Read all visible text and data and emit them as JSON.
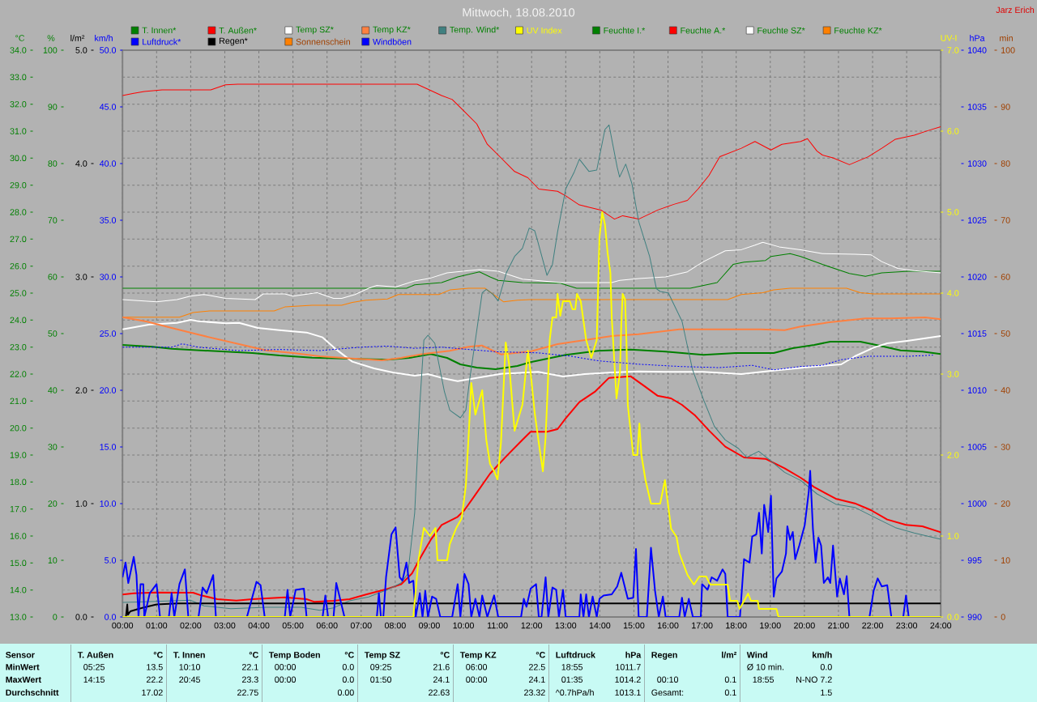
{
  "chart_data": [
    {
      "type": "line",
      "title": "Mittwoch, 18.08.2010",
      "annotations": [
        "Jarz Erich",
        "Sensor",
        "MinWert",
        "MaxWert",
        "Durchschnitt",
        "T. Außen",
        "°C",
        "05:25",
        "13.5",
        "14:15",
        "22.2",
        "17.02",
        "T. Innen",
        "°C",
        "10:10",
        "22.1",
        "20:45",
        "23.3",
        "22.75",
        "Temp Boden",
        "°C",
        "00:00",
        "0.0",
        "00:00",
        "0.0",
        "0.00",
        "Temp SZ",
        "°C",
        "09:25",
        "21.6",
        "01:50",
        "24.1",
        "22.63",
        "Temp KZ",
        "°C",
        "06:00",
        "22.5",
        "00:00",
        "24.1",
        "23.32",
        "Luftdruck",
        "hPa",
        "18:55",
        "1011.7",
        "01:35",
        "1014.2",
        "^0.7hPa/h",
        "1013.1",
        "Regen",
        "l/m²",
        "00:10",
        "0.1",
        "Gesamt:",
        "0.1",
        "Wind",
        "km/h",
        "Ø 10 min.",
        "0.0",
        "18:55",
        "N-NO 7.2",
        "1.5"
      ],
      "xlim": [
        0,
        24
      ],
      "xticks": [
        {
          "value": 0,
          "label": "00:00"
        },
        {
          "value": 1,
          "label": "01:00"
        },
        {
          "value": 2,
          "label": "02:00"
        },
        {
          "value": 3,
          "label": "03:00"
        },
        {
          "value": 4,
          "label": "04:00"
        },
        {
          "value": 5,
          "label": "05:00"
        },
        {
          "value": 6,
          "label": "06:00"
        },
        {
          "value": 7,
          "label": "07:00"
        },
        {
          "value": 8,
          "label": "08:00"
        },
        {
          "value": 9,
          "label": "09:00"
        },
        {
          "value": 10,
          "label": "10:00"
        },
        {
          "value": 11,
          "label": "11:00"
        },
        {
          "value": 12,
          "label": "12:00"
        },
        {
          "value": 13,
          "label": "13:00"
        },
        {
          "value": 14,
          "label": "14:00"
        },
        {
          "value": 15,
          "label": "15:00"
        },
        {
          "value": 16,
          "label": "16:00"
        },
        {
          "value": 17,
          "label": "17:00"
        },
        {
          "value": 18,
          "label": "18:00"
        },
        {
          "value": 19,
          "label": "19:00"
        },
        {
          "value": 20,
          "label": "20:00"
        },
        {
          "value": 21,
          "label": "21:00"
        },
        {
          "value": 22,
          "label": "22:00"
        },
        {
          "value": 23,
          "label": "23:00"
        },
        {
          "value": 24,
          "label": "24:00"
        }
      ],
      "ylabel": "°C",
      "ylim": [
        13,
        34
      ],
      "yticks": [
        {
          "value": 13,
          "label": "13.0"
        },
        {
          "value": 14,
          "label": "14.0"
        },
        {
          "value": 15,
          "label": "15.0"
        },
        {
          "value": 16,
          "label": "16.0"
        },
        {
          "value": 17,
          "label": "17.0"
        },
        {
          "value": 18,
          "label": "18.0"
        },
        {
          "value": 19,
          "label": "19.0"
        },
        {
          "value": 20,
          "label": "20.0"
        },
        {
          "value": 21,
          "label": "21.0"
        },
        {
          "value": 22,
          "label": "22.0"
        },
        {
          "value": 23,
          "label": "23.0"
        },
        {
          "value": 24,
          "label": "24.0"
        },
        {
          "value": 25,
          "label": "25.0"
        },
        {
          "value": 26,
          "label": "26.0"
        },
        {
          "value": 27,
          "label": "27.0"
        },
        {
          "value": 28,
          "label": "28.0"
        },
        {
          "value": 29,
          "label": "29.0"
        },
        {
          "value": 30,
          "label": "30.0"
        },
        {
          "value": 31,
          "label": "31.0"
        },
        {
          "value": 32,
          "label": "32.0"
        },
        {
          "value": 33,
          "label": "33.0"
        },
        {
          "value": 34,
          "label": "34.0"
        }
      ],
      "y2label": "%",
      "y2lim": [
        0,
        100
      ],
      "y2ticks": [
        0,
        10,
        20,
        30,
        40,
        50,
        60,
        70,
        80,
        90,
        100
      ],
      "y3label": "l/m²",
      "y3lim": [
        0,
        5
      ],
      "y3ticks": [
        {
          "value": 0,
          "label": "0.0"
        },
        {
          "value": 1,
          "label": "1.0"
        },
        {
          "value": 2,
          "label": "2.0"
        },
        {
          "value": 3,
          "label": "3.0"
        },
        {
          "value": 4,
          "label": "4.0"
        },
        {
          "value": 5,
          "label": "5.0"
        }
      ],
      "grid": true,
      "legend": "top",
      "series": [
        {
          "name": "T. Innen*",
          "color": "#008000",
          "x": [
            0,
            0.88,
            1.44,
            2.07,
            3.02,
            3.81,
            4.61,
            5.56,
            6.43,
            7.77,
            8.41,
            9.04,
            9.52,
            9.91,
            10.39,
            10.94,
            11.58,
            11.97,
            13.0,
            13.95,
            14.9,
            15.93,
            17.04,
            17.99,
            19.1,
            19.66,
            20.29,
            20.76,
            21.64,
            22.19,
            22.82,
            23.46,
            24.0
          ],
          "values": [
            23.08,
            23.01,
            22.94,
            22.89,
            22.83,
            22.78,
            22.69,
            22.61,
            22.58,
            22.53,
            22.6,
            22.74,
            22.6,
            22.36,
            22.24,
            22.18,
            22.3,
            22.44,
            22.71,
            22.86,
            22.91,
            22.83,
            22.71,
            22.78,
            22.78,
            22.96,
            23.08,
            23.2,
            23.2,
            23.06,
            22.88,
            22.83,
            22.74
          ]
        },
        {
          "name": "T. Außen*",
          "color": "#FF0000",
          "x": [
            0,
            0.33,
            0.96,
            2.07,
            2.31,
            2.78,
            3.34,
            3.81,
            4.76,
            5.4,
            5.63,
            6.19,
            6.66,
            7.14,
            7.69,
            8.17,
            8.49,
            8.72,
            9.04,
            9.36,
            9.83,
            10.03,
            10.31,
            10.78,
            11.26,
            11.73,
            11.97,
            12.45,
            12.76,
            13.0,
            13.4,
            13.87,
            14.27,
            14.9,
            15.3,
            15.69,
            16.09,
            16.41,
            16.8,
            17.2,
            17.68,
            18.23,
            18.86,
            19.42,
            19.89,
            20.29,
            20.92,
            21.48,
            21.95,
            22.43,
            22.98,
            23.46,
            24.0
          ],
          "values": [
            13.83,
            13.88,
            13.91,
            13.9,
            13.8,
            13.66,
            13.61,
            13.66,
            13.73,
            13.66,
            13.56,
            13.6,
            13.66,
            13.83,
            14.01,
            14.21,
            14.61,
            15.16,
            15.86,
            16.41,
            16.71,
            16.96,
            17.46,
            18.31,
            18.96,
            19.56,
            19.86,
            19.86,
            19.96,
            20.36,
            20.96,
            21.36,
            21.86,
            21.92,
            21.56,
            21.2,
            21.1,
            20.86,
            20.46,
            19.91,
            19.31,
            18.91,
            18.86,
            18.51,
            18.16,
            17.81,
            17.38,
            17.21,
            16.96,
            16.61,
            16.41,
            16.36,
            16.14
          ]
        },
        {
          "name": "Temp SZ*",
          "color": "#FFFFFF",
          "x": [
            0,
            0.8,
            1.6,
            2.0,
            2.23,
            3.02,
            3.42,
            3.97,
            4.6,
            5.4,
            5.87,
            6.27,
            6.74,
            7.38,
            7.93,
            8.57,
            8.96,
            9.36,
            9.83,
            10.39,
            11.1,
            12.19,
            12.92,
            13.56,
            14.35,
            15.14,
            15.93,
            17.04,
            18.15,
            18.86,
            19.5,
            20.29,
            21.08,
            21.48,
            22.03,
            22.43,
            23.06,
            24.0
          ],
          "values": [
            23.66,
            23.84,
            23.9,
            24.01,
            23.96,
            23.88,
            23.9,
            23.71,
            23.63,
            23.54,
            23.36,
            22.91,
            22.46,
            22.21,
            22.06,
            21.94,
            22.0,
            21.86,
            21.74,
            21.86,
            22.01,
            22.08,
            21.91,
            22.0,
            22.06,
            22.1,
            22.08,
            22.08,
            22.0,
            22.1,
            22.18,
            22.28,
            22.36,
            22.66,
            22.98,
            23.14,
            23.24,
            23.41
          ]
        },
        {
          "name": "Temp KZ*",
          "color": "#FF8040",
          "x": [
            0,
            0.72,
            1.44,
            2.23,
            3.42,
            4.21,
            5.0,
            5.79,
            6.74,
            7.61,
            8.17,
            8.8,
            9.6,
            10.15,
            10.54,
            11.1,
            11.97,
            12.76,
            13.56,
            14.35,
            15.14,
            16.33,
            17.52,
            18.7,
            19.42,
            19.89,
            20.69,
            21.79,
            22.51,
            23.54,
            24.0
          ],
          "values": [
            24.11,
            23.94,
            23.71,
            23.46,
            23.11,
            22.88,
            22.78,
            22.66,
            22.58,
            22.51,
            22.6,
            22.74,
            22.86,
            23.01,
            23.06,
            22.73,
            22.84,
            23.11,
            23.26,
            23.41,
            23.48,
            23.66,
            23.66,
            23.66,
            23.63,
            23.76,
            23.91,
            24.06,
            24.06,
            24.1,
            24.03
          ]
        },
        {
          "name": "Temp. Wind*",
          "color": "#408080",
          "x": [
            0,
            0.64,
            1.99,
            2.39,
            3.18,
            4.21,
            5.24,
            5.79,
            6.19,
            6.66,
            7.22,
            7.77,
            8.17,
            8.37,
            8.57,
            8.72,
            8.84,
            8.96,
            9.16,
            9.44,
            9.6,
            9.91,
            10.07,
            10.19,
            10.35,
            10.55,
            10.67,
            10.86,
            11.02,
            11.26,
            11.5,
            11.73,
            11.93,
            12.09,
            12.17,
            12.45,
            12.61,
            12.76,
            13.0,
            13.24,
            13.4,
            13.68,
            13.91,
            14.15,
            14.27,
            14.51,
            14.58,
            14.76,
            14.94,
            15.14,
            15.46,
            15.66,
            15.77,
            16.01,
            16.41,
            16.53,
            16.72,
            17.04,
            17.36,
            17.68,
            18.07,
            18.31,
            18.66,
            18.94,
            19.42,
            19.89,
            20.37,
            20.92,
            21.48,
            22.03,
            22.67,
            23.22,
            24.0
          ],
          "values": [
            13.54,
            13.56,
            13.62,
            13.41,
            13.31,
            13.36,
            13.36,
            13.25,
            13.34,
            13.6,
            13.74,
            14.01,
            14.26,
            14.6,
            16.86,
            20.86,
            23.26,
            23.44,
            23.14,
            21.36,
            20.66,
            20.38,
            20.66,
            21.86,
            23.26,
            25.01,
            25.14,
            24.96,
            24.71,
            25.76,
            26.36,
            26.66,
            27.41,
            27.31,
            26.96,
            25.66,
            26.06,
            27.26,
            28.86,
            29.46,
            29.96,
            29.51,
            29.56,
            31.06,
            31.23,
            29.66,
            29.3,
            29.78,
            29.06,
            27.66,
            26.36,
            25.16,
            25.06,
            25.01,
            23.96,
            23.26,
            22.16,
            21.06,
            20.06,
            19.56,
            19.24,
            18.91,
            19.14,
            18.86,
            18.36,
            18.06,
            17.56,
            17.18,
            17.06,
            16.71,
            16.31,
            16.11,
            15.88
          ]
        },
        {
          "name": "Feuchte I.*",
          "color": "#008000",
          "axis": "y2",
          "x": [
            0,
            8.33,
            8.57,
            9.36,
            9.83,
            10.47,
            10.78,
            11.02,
            11.73,
            12.84,
            13.32,
            16.65,
            17.44,
            17.91,
            18.23,
            18.86,
            19.02,
            19.58,
            19.89,
            20.53,
            21.32,
            21.79,
            22.27,
            23.06,
            24.0
          ],
          "values": [
            58.0,
            58.0,
            58.6,
            59.0,
            60.0,
            60.9,
            60.0,
            59.4,
            59.0,
            58.9,
            58.0,
            58.0,
            59.0,
            62.2,
            62.6,
            62.9,
            63.6,
            64.1,
            63.6,
            62.2,
            60.6,
            60.1,
            60.7,
            61.0,
            61.0
          ]
        },
        {
          "name": "Feuchte A.*",
          "color": "#FF0000",
          "axis": "y2",
          "x": [
            0,
            0.33,
            0.64,
            1.16,
            2.59,
            3.02,
            3.38,
            8.64,
            9.04,
            9.36,
            9.67,
            9.99,
            10.39,
            10.7,
            11.02,
            11.5,
            11.89,
            12.21,
            12.76,
            13.0,
            13.4,
            14.03,
            14.43,
            14.67,
            15.14,
            15.7,
            16.17,
            16.57,
            16.88,
            17.2,
            17.52,
            18.15,
            18.55,
            19.02,
            19.34,
            19.89,
            20.09,
            20.37,
            20.53,
            20.84,
            21.32,
            21.87,
            22.27,
            22.67,
            23.22,
            23.62,
            24.0
          ],
          "values": [
            92.0,
            92.4,
            92.7,
            93.0,
            93.0,
            93.9,
            94.0,
            94.0,
            92.9,
            92.0,
            91.3,
            89.4,
            87.0,
            83.4,
            81.5,
            78.6,
            77.5,
            75.5,
            75.1,
            74.3,
            72.7,
            71.8,
            70.2,
            70.8,
            70.2,
            71.8,
            72.8,
            73.5,
            75.5,
            77.9,
            81.2,
            82.7,
            83.9,
            82.4,
            83.4,
            83.9,
            84.4,
            82.2,
            81.5,
            81.0,
            79.8,
            81.2,
            82.7,
            84.3,
            85.0,
            85.8,
            86.5
          ]
        },
        {
          "name": "Feuchte SZ*",
          "color": "#FFFFFF",
          "axis": "y2",
          "x": [
            0,
            1.0,
            1.6,
            1.99,
            2.39,
            3.02,
            3.89,
            4.13,
            4.76,
            5.0,
            5.71,
            6.19,
            6.43,
            6.82,
            7.22,
            7.46,
            8.01,
            8.57,
            9.04,
            9.52,
            10.15,
            10.47,
            11.02,
            11.73,
            12.84,
            14.35,
            14.59,
            15.14,
            15.93,
            16.57,
            17.04,
            17.68,
            18.15,
            18.55,
            18.78,
            19.26,
            19.89,
            20.53,
            21.48,
            21.95,
            22.27,
            22.74,
            23.22,
            24.0
          ],
          "values": [
            56.0,
            55.6,
            56.0,
            56.6,
            56.9,
            56.2,
            56.0,
            57.0,
            57.0,
            56.6,
            57.2,
            56.2,
            56.2,
            56.9,
            58.0,
            58.5,
            58.2,
            59.3,
            59.8,
            60.7,
            61.1,
            61.3,
            61.0,
            59.6,
            59.0,
            59.0,
            59.4,
            59.7,
            60.0,
            60.9,
            62.7,
            64.6,
            64.8,
            65.6,
            66.1,
            65.3,
            64.8,
            64.1,
            64.0,
            63.9,
            62.7,
            61.5,
            61.1,
            60.7
          ]
        },
        {
          "name": "Feuchte KZ*",
          "color": "#FF8000",
          "axis": "y2",
          "x": [
            0,
            1.67,
            2.07,
            2.55,
            4.45,
            4.76,
            5.56,
            6.43,
            6.74,
            7.14,
            7.77,
            8.09,
            9.28,
            9.6,
            10.15,
            10.63,
            11.18,
            11.58,
            11.97,
            17.75,
            18.15,
            18.78,
            19.1,
            19.58,
            21.24,
            21.64,
            22.03,
            24.0
          ],
          "values": [
            52.9,
            52.9,
            53.7,
            54.0,
            54.0,
            54.7,
            55.0,
            55.0,
            55.5,
            55.9,
            56.1,
            56.9,
            56.9,
            57.7,
            58.0,
            58.0,
            55.6,
            55.9,
            56.0,
            56.0,
            56.9,
            57.2,
            57.7,
            58.0,
            58.0,
            57.2,
            57.0,
            57.0
          ]
        },
        {
          "name": "Regen*",
          "color": "#000000",
          "axis": "y3",
          "x": [
            0.1,
            0.14,
            0.16,
            0.23,
            0.45,
            0.7,
            1.0,
            1.6,
            24.0
          ],
          "values": [
            0,
            0.11,
            0.02,
            0.05,
            0.07,
            0.09,
            0.11,
            0.12,
            0.12
          ]
        }
      ]
    },
    {
      "type": "line",
      "xlim": [
        0,
        24
      ],
      "tick_labels": "y",
      "ylabel": "km/h",
      "ylim": [
        0,
        50
      ],
      "yticks": [
        {
          "value": 0,
          "label": "0.0"
        },
        {
          "value": 5,
          "label": "5.0"
        },
        {
          "value": 10,
          "label": "10.0"
        },
        {
          "value": 15,
          "label": "15.0"
        },
        {
          "value": 20,
          "label": "20.0"
        },
        {
          "value": 25,
          "label": "25.0"
        },
        {
          "value": 30,
          "label": "30.0"
        },
        {
          "value": 35,
          "label": "35.0"
        },
        {
          "value": 40,
          "label": "40.0"
        },
        {
          "value": 45,
          "label": "45.0"
        },
        {
          "value": 50,
          "label": "50.0"
        }
      ],
      "y2label": "UV-I",
      "y2lim": [
        0,
        7
      ],
      "y2ticks": [
        {
          "value": 0,
          "label": "0.0"
        },
        {
          "value": 1,
          "label": "1.0"
        },
        {
          "value": 2,
          "label": "2.0"
        },
        {
          "value": 3,
          "label": "3.0"
        },
        {
          "value": 4,
          "label": "4.0"
        },
        {
          "value": 5,
          "label": "5.0"
        },
        {
          "value": 6,
          "label": "6.0"
        },
        {
          "value": 7,
          "label": "7.0"
        }
      ],
      "y3label": "min",
      "y3lim": [
        0,
        100
      ],
      "y3ticks": [
        0,
        10,
        20,
        30,
        40,
        50,
        60,
        70,
        80,
        90,
        100
      ],
      "legend": "top",
      "series": [
        {
          "name": "UV Index",
          "color": "#FFFF00",
          "axis": "y2",
          "x": [
            0,
            8.53,
            8.68,
            8.84,
            9.02,
            9.18,
            9.24,
            9.52,
            9.6,
            9.79,
            9.95,
            10.07,
            10.15,
            10.23,
            10.35,
            10.55,
            10.67,
            10.78,
            10.9,
            11.0,
            11.1,
            11.24,
            11.34,
            11.5,
            11.73,
            11.89,
            11.97,
            12.09,
            12.21,
            12.33,
            12.41,
            12.53,
            12.61,
            12.72,
            12.76,
            12.84,
            12.92,
            13.12,
            13.2,
            13.28,
            13.33,
            13.44,
            13.6,
            13.75,
            13.91,
            13.99,
            14.07,
            14.15,
            14.23,
            14.31,
            14.35,
            14.39,
            14.43,
            14.49,
            14.59,
            14.63,
            14.67,
            14.74,
            14.78,
            14.82,
            14.98,
            15.1,
            15.16,
            15.22,
            15.34,
            15.5,
            15.77,
            15.91,
            16.09,
            16.25,
            16.33,
            16.57,
            16.76,
            16.92,
            17.12,
            17.24,
            17.75,
            17.82,
            18.03,
            18.1,
            18.35,
            18.43,
            18.63,
            18.67,
            19.18,
            19.24,
            24.0
          ],
          "values": [
            0,
            0,
            0.7,
            1.1,
            1.0,
            1.1,
            0.7,
            0.7,
            0.9,
            1.1,
            1.22,
            1.62,
            2.22,
            2.89,
            2.5,
            2.8,
            2.19,
            1.89,
            1.8,
            1.7,
            2.15,
            3.39,
            3.12,
            2.3,
            2.62,
            3.29,
            3.02,
            2.52,
            2.15,
            1.8,
            2.22,
            3.42,
            3.7,
            3.7,
            3.99,
            3.72,
            3.9,
            3.9,
            3.8,
            3.8,
            3.99,
            3.9,
            3.42,
            3.2,
            3.42,
            4.69,
            5.0,
            4.85,
            4.49,
            4.25,
            3.69,
            3.42,
            3.12,
            2.7,
            3.02,
            3.62,
            3.99,
            3.92,
            3.42,
            2.62,
            2.0,
            2.0,
            2.39,
            2.0,
            1.69,
            1.4,
            1.4,
            1.69,
            1.09,
            0.99,
            0.79,
            0.52,
            0.4,
            0.5,
            0.5,
            0.4,
            0.4,
            0.2,
            0.2,
            0.1,
            0.29,
            0.2,
            0.2,
            0.1,
            0.1,
            0,
            0
          ]
        },
        {
          "name": "Windböen",
          "color": "#0000FF",
          "x": [
            0,
            0.09,
            0.17,
            0.33,
            0.41,
            0.47,
            0.53,
            0.61,
            0.64,
            0.8,
            1.0,
            1.1,
            1.36,
            1.44,
            1.52,
            1.67,
            1.83,
            1.93,
            2.23,
            2.35,
            2.47,
            2.66,
            2.74,
            3.65,
            3.93,
            4.05,
            4.17,
            4.76,
            4.84,
            4.92,
            5.08,
            5.32,
            5.4,
            5.87,
            5.95,
            6.03,
            6.19,
            6.27,
            6.51,
            7.46,
            7.52,
            7.58,
            7.65,
            7.73,
            7.89,
            8.01,
            8.13,
            8.21,
            8.33,
            8.41,
            8.53,
            8.6,
            8.72,
            8.8,
            8.88,
            8.96,
            9.08,
            9.2,
            9.32,
            9.67,
            9.83,
            9.91,
            10.03,
            10.15,
            10.23,
            10.35,
            10.47,
            10.55,
            10.7,
            10.9,
            11.02,
            11.69,
            11.77,
            11.85,
            11.97,
            12.13,
            12.21,
            12.29,
            12.41,
            12.49,
            12.61,
            12.72,
            12.8,
            12.92,
            13.0,
            13.4,
            13.44,
            13.52,
            13.6,
            13.68,
            13.79,
            13.91,
            13.99,
            14.11,
            14.35,
            14.51,
            14.63,
            14.82,
            14.98,
            15.06,
            15.14,
            15.38,
            15.5,
            15.62,
            15.73,
            15.85,
            15.93,
            16.33,
            16.41,
            16.49,
            16.61,
            16.73,
            16.96,
            17.0,
            17.16,
            17.28,
            17.44,
            17.6,
            17.68,
            17.75,
            18.11,
            18.23,
            18.39,
            18.47,
            18.59,
            18.67,
            18.75,
            18.82,
            18.94,
            19.02,
            19.1,
            19.18,
            19.34,
            19.46,
            19.5,
            19.58,
            19.66,
            19.73,
            19.85,
            20.01,
            20.13,
            20.17,
            20.25,
            20.33,
            20.41,
            20.49,
            20.57,
            20.69,
            20.76,
            20.84,
            20.96,
            21.04,
            21.16,
            21.24,
            21.32,
            21.91,
            22.03,
            22.15,
            22.27,
            22.43,
            22.55,
            22.9,
            22.98,
            23.06
          ],
          "values": [
            3.5,
            4.8,
            3.0,
            5.3,
            3.7,
            0,
            2.9,
            2.9,
            0,
            2.1,
            2.9,
            0,
            0,
            2.1,
            0,
            2.9,
            4.2,
            0,
            0,
            2.6,
            2.1,
            3.7,
            0,
            0,
            3.1,
            2.8,
            0,
            0,
            2.4,
            0,
            2.4,
            2.5,
            0,
            0,
            1.9,
            0,
            0,
            3.0,
            0,
            0,
            2.1,
            0,
            0,
            3.5,
            7.3,
            7.9,
            3.5,
            3.2,
            4.8,
            3.0,
            3.2,
            0,
            2.1,
            0,
            2.3,
            0,
            1.8,
            1.6,
            0,
            0,
            2.9,
            0,
            3.8,
            2.9,
            0,
            1.6,
            0,
            1.9,
            0,
            1.9,
            0,
            0,
            1.6,
            0.9,
            2.5,
            2.9,
            0,
            0,
            3.5,
            0,
            2.6,
            2.4,
            0,
            2.4,
            0,
            0,
            2.0,
            0,
            2.0,
            0,
            1.8,
            0,
            1.6,
            1.9,
            2.0,
            2.7,
            3.9,
            1.6,
            1.7,
            6.0,
            0,
            0,
            6.1,
            2.3,
            0,
            1.8,
            0,
            0,
            1.7,
            0,
            1.6,
            0,
            0,
            2.9,
            2.4,
            3.5,
            3.2,
            4.2,
            3.8,
            0,
            0,
            5.1,
            4.8,
            7.1,
            7.3,
            9.2,
            5.6,
            9.9,
            7.5,
            10.7,
            1.8,
            3.4,
            4.0,
            5.6,
            8.0,
            6.8,
            7.5,
            5.1,
            6.3,
            8.1,
            11.1,
            12.9,
            7.8,
            4.8,
            7.0,
            6.3,
            3.0,
            3.5,
            3.0,
            6.3,
            1.8,
            3.4,
            2.0,
            3.6,
            0,
            0,
            2.3,
            3.4,
            2.7,
            2.8,
            0,
            0,
            1.9,
            0
          ]
        },
        {
          "name": "Sonnenschein",
          "color": "#FF8000",
          "axis": "y3"
        }
      ]
    },
    {
      "type": "line",
      "xlim": [
        0,
        24
      ],
      "tick_labels": "y",
      "ylabel": "hPa",
      "ylim": [
        990,
        1040
      ],
      "yticks": [
        990,
        995,
        1000,
        1005,
        1010,
        1015,
        1020,
        1025,
        1030,
        1035,
        1040
      ],
      "legend": "top",
      "series": [
        {
          "name": "Luftdruck*",
          "color": "#0000FF",
          "line_style": "dotted",
          "x": [
            0,
            1.44,
            1.75,
            1.91,
            2.23,
            3.42,
            4.61,
            5.79,
            6.98,
            7.77,
            8.57,
            9.36,
            10.15,
            10.94,
            12.19,
            13.16,
            13.95,
            15.14,
            16.33,
            17.52,
            18.47,
            19.1,
            19.89,
            20.53,
            21.08,
            21.87,
            23.06,
            23.77
          ],
          "values": [
            1013.8,
            1013.8,
            1014.1,
            1014.0,
            1013.8,
            1013.5,
            1013.6,
            1013.5,
            1013.8,
            1013.9,
            1013.7,
            1013.8,
            1013.6,
            1013.4,
            1013.3,
            1013.0,
            1012.6,
            1012.3,
            1012.1,
            1012.0,
            1012.2,
            1011.8,
            1012.1,
            1012.2,
            1012.7,
            1013.0,
            1013.0,
            1013.1
          ]
        }
      ]
    }
  ]
}
